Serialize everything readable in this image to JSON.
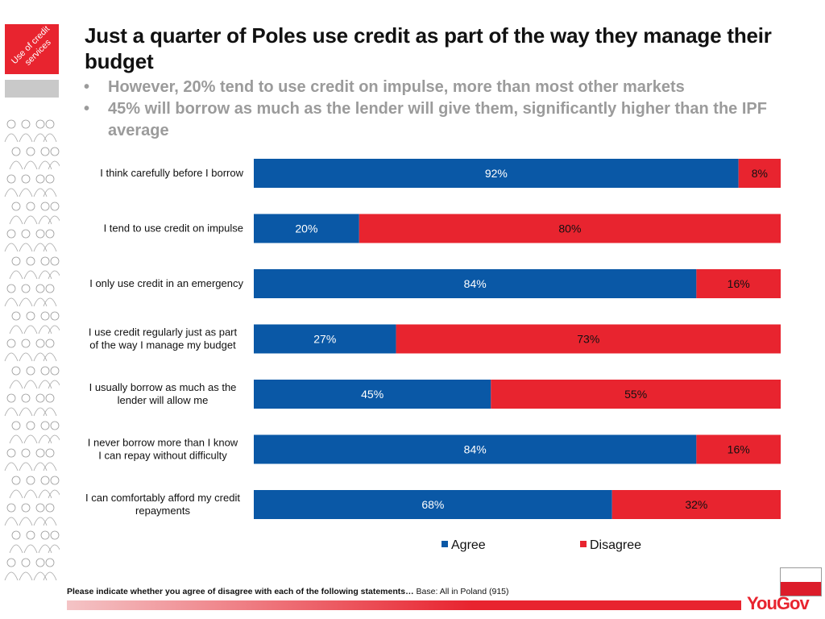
{
  "sidebar": {
    "section_label": "Use of credit services"
  },
  "header": {
    "title": "Just a quarter of Poles use credit as part of the way they manage their budget",
    "bullets": [
      "However, 20% tend to use credit on impulse, more than most other markets",
      "45% will borrow as much as the lender will give them, significantly higher than the IPF average"
    ]
  },
  "colors": {
    "agree": "#0a58a6",
    "disagree": "#e8242f",
    "accent": "#e8242f",
    "subtitle": "#9b9b9b"
  },
  "chart_data": {
    "type": "bar",
    "orientation": "horizontal",
    "stacked": true,
    "categories": [
      "I think carefully before I borrow",
      "I tend to use credit on impulse",
      "I only use credit in an emergency",
      "I use credit regularly just as part of the way I manage my budget",
      "I usually borrow as much as the lender will allow me",
      "I never  borrow more than I know I can repay without difficulty",
      "I can comfortably afford my credit repayments"
    ],
    "category_lines": [
      [
        "I think carefully before I borrow"
      ],
      [
        "I tend to use credit on impulse"
      ],
      [
        "I only use credit in an emergency"
      ],
      [
        "I use credit regularly just as part",
        "of the way I manage my budget"
      ],
      [
        "I usually borrow as much as the",
        "lender will allow me"
      ],
      [
        "I never  borrow more than I know",
        "I can repay without difficulty"
      ],
      [
        "I can comfortably afford my credit",
        "repayments"
      ]
    ],
    "series": [
      {
        "name": "Agree",
        "values": [
          92,
          20,
          84,
          27,
          45,
          84,
          68
        ]
      },
      {
        "name": "Disagree",
        "values": [
          8,
          80,
          16,
          73,
          55,
          16,
          32
        ]
      }
    ],
    "unit": "%",
    "xlim": [
      0,
      100
    ],
    "grid": false,
    "legend_position": "bottom"
  },
  "footer": {
    "question": "Please indicate whether you agree of disagree with each of the following statements…",
    "base": " Base: All in Poland (915)",
    "brand": "YouGov"
  }
}
